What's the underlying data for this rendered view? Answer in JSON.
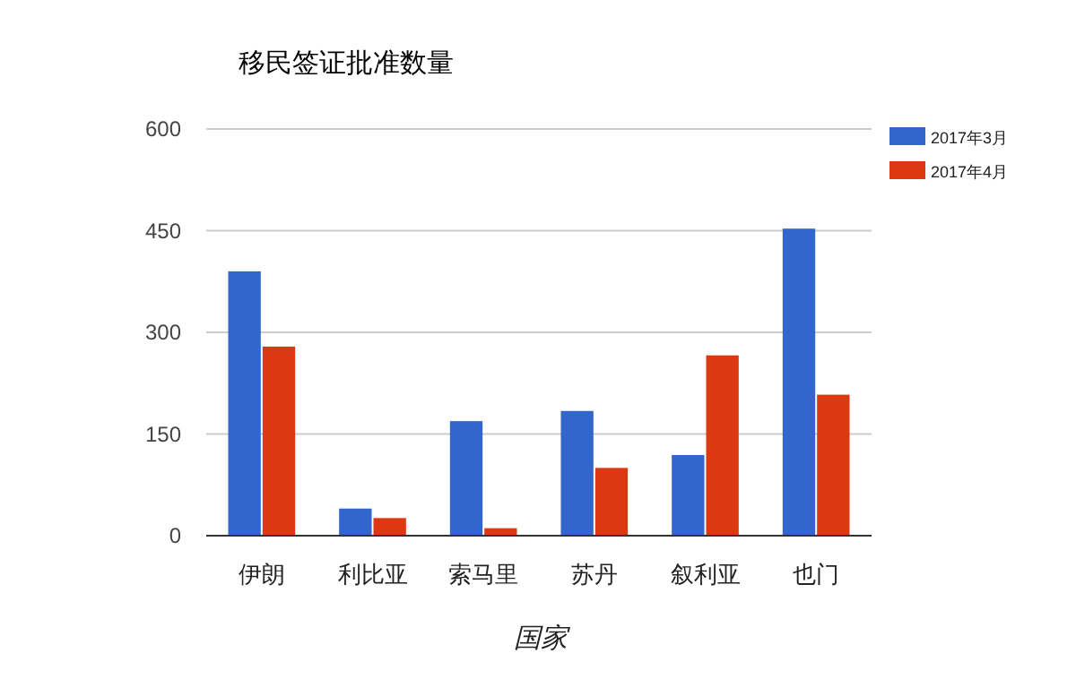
{
  "chart_data": {
    "type": "bar",
    "title": "移民签证批准数量",
    "xlabel": "国家",
    "categories": [
      "伊朗",
      "利比亚",
      "索马里",
      "苏丹",
      "叙利亚",
      "也门"
    ],
    "series": [
      {
        "name": "2017年3月",
        "color": "#3366cc",
        "values": [
          390,
          40,
          169,
          184,
          119,
          453
        ]
      },
      {
        "name": "2017年4月",
        "color": "#dc3912",
        "values": [
          279,
          26,
          11,
          100,
          266,
          208
        ]
      }
    ],
    "ylim": [
      0,
      600
    ],
    "yticks": [
      0,
      150,
      300,
      450,
      600
    ],
    "grid": "y",
    "legend": "top right"
  }
}
